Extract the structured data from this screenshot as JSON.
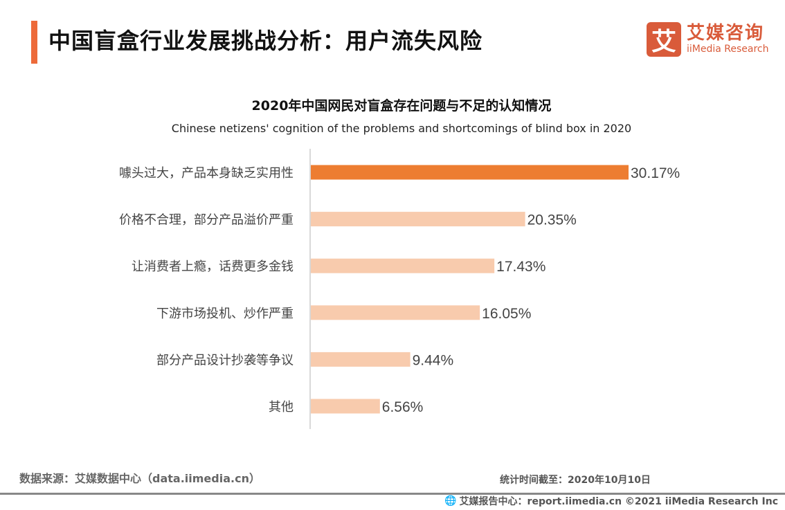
{
  "header": {
    "title": "中国盲盒行业发展挑战分析：用户流失风险",
    "logo_cn": "艾媒咨询",
    "logo_en": "iiMedia Research",
    "logo_mark": "艾"
  },
  "chart_data": {
    "type": "bar",
    "orientation": "horizontal",
    "title": "2020年中国网民对盲盒存在问题与不足的认知情况",
    "subtitle": "Chinese netizens' cognition of the problems and shortcomings of blind box in 2020",
    "categories": [
      "噱头过大，产品本身缺乏实用性",
      "价格不合理，部分产品溢价严重",
      "让消费者上瘾，话费更多金钱",
      "下游市场投机、炒作严重",
      "部分产品设计抄袭等争议",
      "其他"
    ],
    "values": [
      30.17,
      20.35,
      17.43,
      16.05,
      9.44,
      6.56
    ],
    "labels": [
      "30.17%",
      "20.35%",
      "17.43%",
      "16.05%",
      "9.44%",
      "6.56%"
    ],
    "unit": "%",
    "xlim": [
      0,
      32
    ],
    "colors": {
      "highlight": "#ED7D31",
      "normal": "#F8CBAD"
    }
  },
  "footer": {
    "source": "数据来源：艾媒数据中心（data.iimedia.cn）",
    "date": "统计时间截至：2020年10月10日",
    "copyright": "艾媒报告中心：report.iimedia.cn  ©2021  iiMedia Research  Inc"
  }
}
